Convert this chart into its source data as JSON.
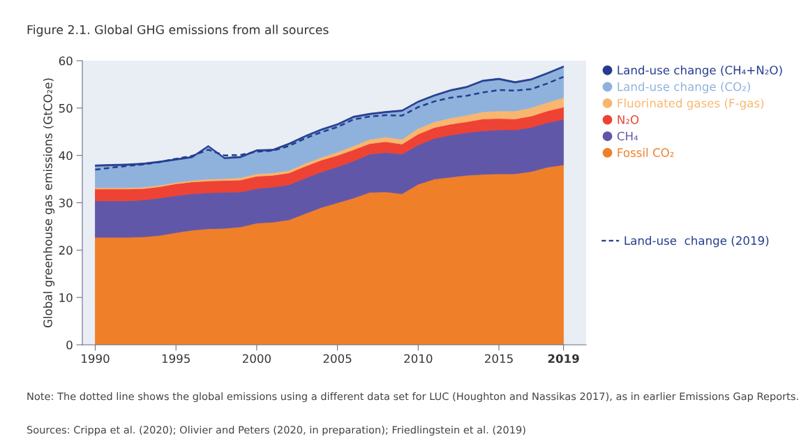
{
  "chart_data": {
    "type": "area",
    "stacked": true,
    "title": "Figure 2.1. Global GHG emissions from all sources",
    "ylabel": "Global greenhouse gas emissions (GtCO₂e)",
    "x": [
      1990,
      1991,
      1992,
      1993,
      1994,
      1995,
      1996,
      1997,
      1998,
      1999,
      2000,
      2001,
      2002,
      2003,
      2004,
      2005,
      2006,
      2007,
      2008,
      2009,
      2010,
      2011,
      2012,
      2013,
      2014,
      2015,
      2016,
      2017,
      2018,
      2019
    ],
    "series": [
      {
        "name": "Fossil CO₂",
        "color": "#f07f2a",
        "values": [
          22.7,
          22.7,
          22.7,
          22.8,
          23.1,
          23.7,
          24.2,
          24.5,
          24.6,
          24.9,
          25.7,
          25.9,
          26.4,
          27.7,
          29.0,
          30.0,
          31.0,
          32.2,
          32.3,
          31.9,
          33.9,
          35.0,
          35.4,
          35.8,
          36.0,
          36.1,
          36.1,
          36.6,
          37.5,
          38.0
        ]
      },
      {
        "name": "CH₄",
        "color": "#6157a8",
        "values": [
          7.7,
          7.7,
          7.7,
          7.8,
          7.9,
          7.8,
          7.7,
          7.6,
          7.6,
          7.4,
          7.3,
          7.4,
          7.4,
          7.5,
          7.5,
          7.6,
          7.8,
          8.1,
          8.3,
          8.4,
          8.3,
          8.6,
          8.9,
          9.0,
          9.2,
          9.3,
          9.3,
          9.3,
          9.4,
          9.6
        ]
      },
      {
        "name": "N₂O",
        "color": "#ee4234",
        "values": [
          2.5,
          2.5,
          2.5,
          2.4,
          2.4,
          2.5,
          2.5,
          2.5,
          2.5,
          2.5,
          2.6,
          2.5,
          2.5,
          2.5,
          2.5,
          2.4,
          2.4,
          2.2,
          2.3,
          2.1,
          2.3,
          2.3,
          2.3,
          2.3,
          2.5,
          2.4,
          2.3,
          2.4,
          2.5,
          2.6
        ]
      },
      {
        "name": "Fluorinated gases (F-gas)",
        "color": "#f9b66e",
        "values": [
          0.3,
          0.3,
          0.3,
          0.3,
          0.3,
          0.3,
          0.3,
          0.4,
          0.4,
          0.5,
          0.5,
          0.5,
          0.5,
          0.6,
          0.6,
          0.7,
          0.8,
          0.9,
          1.0,
          1.0,
          1.2,
          1.2,
          1.3,
          1.4,
          1.5,
          1.6,
          1.7,
          1.8,
          1.8,
          2.0
        ]
      },
      {
        "name": "Land-use change (CO₂)",
        "color": "#8fb2dd",
        "values": [
          4.5,
          4.6,
          4.7,
          4.8,
          4.8,
          4.7,
          4.8,
          6.8,
          4.2,
          4.2,
          4.8,
          4.7,
          5.5,
          5.6,
          5.7,
          5.7,
          6.0,
          5.2,
          5.1,
          5.9,
          5.5,
          5.4,
          5.7,
          5.8,
          6.4,
          6.6,
          5.9,
          5.8,
          6.0,
          6.4
        ]
      },
      {
        "name": "Land-use change (CH₄+N₂O)",
        "color": "#253d8f",
        "values": [
          0.3,
          0.3,
          0.3,
          0.3,
          0.3,
          0.3,
          0.3,
          0.3,
          0.3,
          0.3,
          0.3,
          0.3,
          0.3,
          0.3,
          0.3,
          0.3,
          0.3,
          0.3,
          0.3,
          0.3,
          0.3,
          0.3,
          0.3,
          0.3,
          0.3,
          0.3,
          0.3,
          0.3,
          0.3,
          0.3
        ]
      },
      {
        "name": "Land-use  change (2019)",
        "type": "line",
        "line_style": "dashed",
        "color": "#253d8f",
        "values": [
          37.0,
          37.4,
          37.8,
          38.1,
          38.6,
          39.3,
          39.9,
          41.2,
          40.0,
          40.1,
          40.8,
          41.0,
          42.0,
          43.6,
          44.9,
          46.0,
          47.6,
          48.2,
          48.5,
          48.4,
          50.2,
          51.4,
          52.2,
          52.6,
          53.3,
          53.8,
          53.7,
          54.0,
          55.2,
          56.6
        ]
      }
    ],
    "xlim": [
      1989.2,
      2020.4
    ],
    "ylim": [
      0,
      60
    ],
    "xticks": [
      1990,
      1995,
      2000,
      2005,
      2010,
      2015,
      2019
    ],
    "yticks": [
      0,
      10,
      20,
      30,
      40,
      50,
      60
    ],
    "grid": false,
    "legend": "right",
    "annotations": [
      "Note: The dotted line shows the global emissions using a different data set for LUC (Houghton and Nassikas 2017), as in earlier Emissions Gap Reports.",
      "Sources: Crippa et al. (2020); Olivier and Peters (2020, in preparation); Friedlingstein et al. (2019)"
    ]
  }
}
